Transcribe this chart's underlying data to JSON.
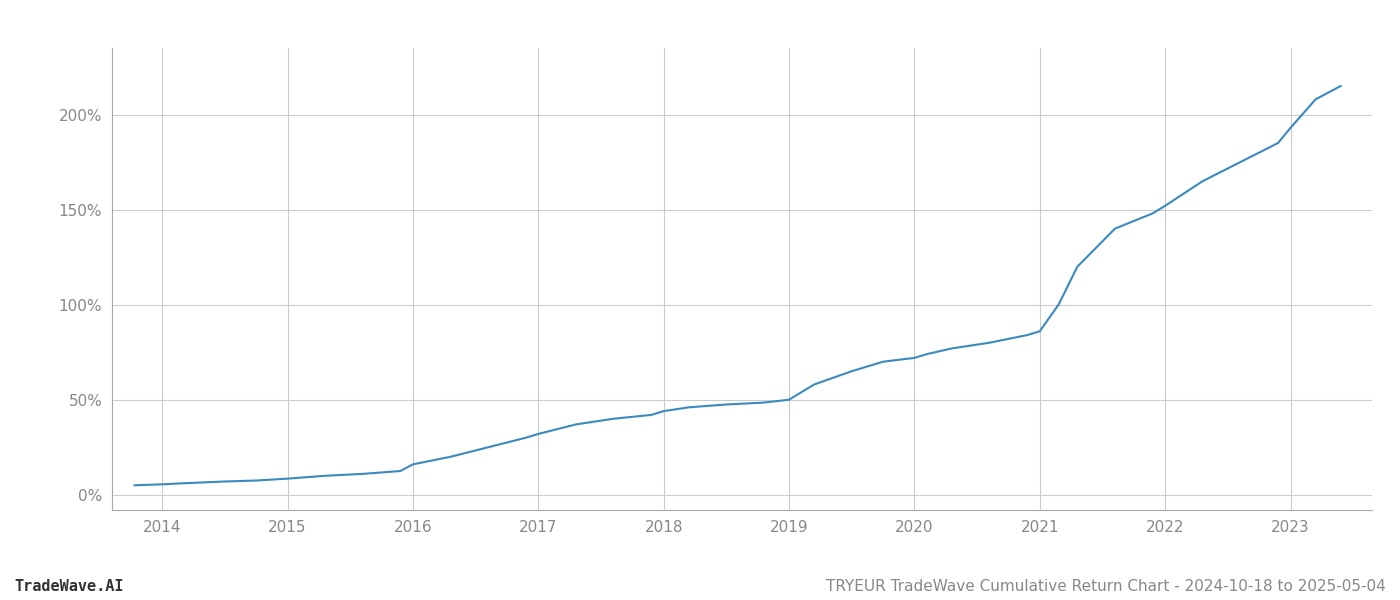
{
  "title": "TRYEUR TradeWave Cumulative Return Chart - 2024-10-18 to 2025-05-04",
  "watermark": "TradeWave.AI",
  "line_color": "#3a8abf",
  "background_color": "#ffffff",
  "grid_color": "#cccccc",
  "x_years": [
    2014,
    2015,
    2016,
    2017,
    2018,
    2019,
    2020,
    2021,
    2022,
    2023
  ],
  "y_ticks": [
    0,
    50,
    100,
    150,
    200
  ],
  "xlim": [
    2013.6,
    2023.65
  ],
  "ylim": [
    -8,
    235
  ],
  "data_x": [
    2013.78,
    2014.0,
    2014.15,
    2014.5,
    2014.75,
    2015.0,
    2015.3,
    2015.6,
    2015.9,
    2016.0,
    2016.3,
    2016.6,
    2016.9,
    2017.0,
    2017.3,
    2017.6,
    2017.9,
    2018.0,
    2018.2,
    2018.5,
    2018.8,
    2019.0,
    2019.2,
    2019.5,
    2019.75,
    2020.0,
    2020.1,
    2020.3,
    2020.6,
    2020.9,
    2021.0,
    2021.15,
    2021.3,
    2021.6,
    2021.9,
    2022.0,
    2022.3,
    2022.6,
    2022.9,
    2023.0,
    2023.2,
    2023.4
  ],
  "data_y": [
    5,
    5.5,
    6,
    7,
    7.5,
    8.5,
    10,
    11,
    12.5,
    16,
    20,
    25,
    30,
    32,
    37,
    40,
    42,
    44,
    46,
    47.5,
    48.5,
    50,
    58,
    65,
    70,
    72,
    74,
    77,
    80,
    84,
    86,
    100,
    120,
    140,
    148,
    152,
    165,
    175,
    185,
    193,
    208,
    215
  ],
  "tick_color": "#888888",
  "spine_color": "#aaaaaa",
  "text_color": "#888888",
  "watermark_fontsize": 11,
  "title_fontsize": 11,
  "tick_fontsize": 11,
  "linewidth": 1.5
}
